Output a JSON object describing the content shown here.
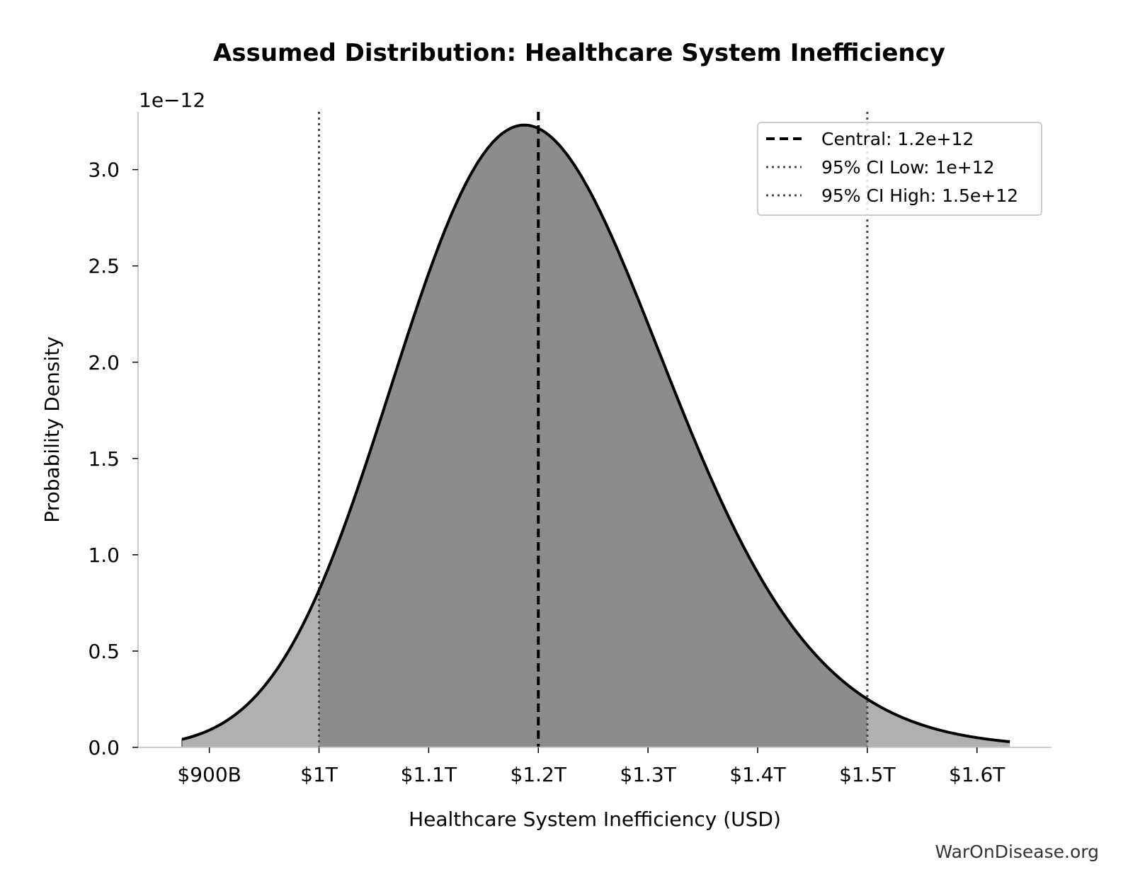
{
  "chart_data": {
    "type": "area",
    "title": "Assumed Distribution: Healthcare System Inefficiency",
    "xlabel": "Healthcare System Inefficiency (USD)",
    "ylabel": "Probability Density",
    "y_offset_label": "1e−12",
    "y_scale_exponent": -12,
    "distribution": "lognormal",
    "median": 1200000000000.0,
    "ci_low": 1000000000000.0,
    "ci_high": 1500000000000.0,
    "xlim": [
      835000000000.0,
      1668000000000.0
    ],
    "ylim": [
      0,
      3.3
    ],
    "curve_x_range": [
      875000000000.0,
      1630000000000.0
    ],
    "x_ticks": [
      900000000000.0,
      1000000000000.0,
      1100000000000.0,
      1200000000000.0,
      1300000000000.0,
      1400000000000.0,
      1500000000000.0,
      1600000000000.0
    ],
    "x_tick_labels": [
      "$900B",
      "$1T",
      "$1.1T",
      "$1.2T",
      "$1.3T",
      "$1.4T",
      "$1.5T",
      "$1.6T"
    ],
    "y_ticks": [
      0.0,
      0.5,
      1.0,
      1.5,
      2.0,
      2.5,
      3.0
    ],
    "y_tick_labels": [
      "0.0",
      "0.5",
      "1.0",
      "1.5",
      "2.0",
      "2.5",
      "3.0"
    ],
    "sample_points": {
      "x": [
        875000000000.0,
        1000000000000.0,
        1100000000000.0,
        1200000000000.0,
        1300000000000.0,
        1400000000000.0,
        1500000000000.0,
        1630000000000.0
      ],
      "y": [
        0.11,
        0.91,
        2.2,
        3.13,
        2.4,
        1.05,
        0.2,
        0.01
      ]
    },
    "series": [
      {
        "name": "Central: 1.2e+12",
        "value": 1200000000000.0,
        "style": "dashed",
        "color": "#000000"
      },
      {
        "name": "95% CI Low: 1e+12",
        "value": 1000000000000.0,
        "style": "dotted",
        "color": "#444444"
      },
      {
        "name": "95% CI High: 1.5e+12",
        "value": 1500000000000.0,
        "style": "dotted",
        "color": "#444444"
      }
    ],
    "legend_position": "top-right",
    "grid": false,
    "colors": {
      "inner_fill": "#8c8c8c",
      "outer_fill": "#b0b0b0",
      "curve": "#000000",
      "axis": "#cccccc"
    }
  },
  "watermark": "WarOnDisease.org"
}
